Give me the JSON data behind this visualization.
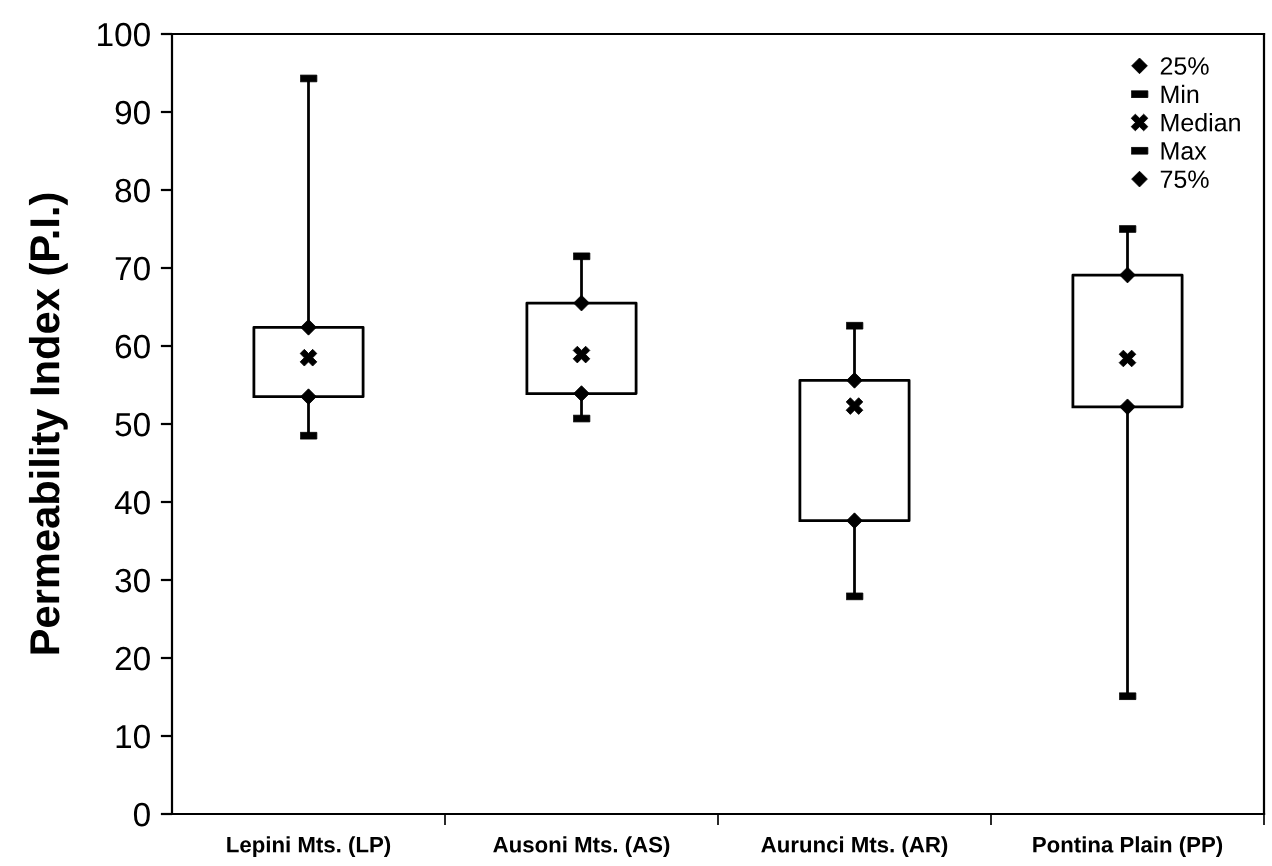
{
  "chart_data": {
    "type": "box",
    "ylabel": "Permeability Index (P.I.)",
    "categories": [
      "Lepini Mts. (LP)",
      "Ausoni Mts. (AS)",
      "Aurunci Mts. (AR)",
      "Pontina Plain (PP)"
    ],
    "boxes": [
      {
        "low": 48.5,
        "q1": 53.5,
        "q3": 62.4,
        "high": 94.3
      },
      {
        "low": 50.7,
        "q1": 53.9,
        "q3": 65.5,
        "high": 71.5
      },
      {
        "low": 27.9,
        "q1": 37.6,
        "q3": 55.6,
        "high": 62.6
      },
      {
        "low": 15.1,
        "q1": 52.2,
        "q3": 69.1,
        "high": 75.0
      }
    ],
    "series": [
      {
        "name": "25%",
        "type": "scatter",
        "marker": "diamond",
        "color": "#000000",
        "values": [
          53.5,
          53.9,
          37.6,
          52.2
        ]
      },
      {
        "name": "Min",
        "type": "scatter",
        "color": "#000000",
        "values": [
          48.5,
          50.7,
          27.9,
          15.1
        ]
      },
      {
        "name": "Median",
        "type": "scatter",
        "marker": "cross",
        "color": "#000000",
        "values": [
          58.5,
          58.9,
          52.3,
          58.4
        ]
      },
      {
        "name": "Max",
        "type": "scatter",
        "color": "#000000",
        "values": [
          94.3,
          71.5,
          62.6,
          75.0
        ]
      },
      {
        "name": "75%",
        "type": "scatter",
        "marker": "diamond",
        "color": "#000000",
        "values": [
          62.4,
          65.5,
          55.6,
          69.1
        ]
      }
    ],
    "ylim": [
      0,
      100
    ],
    "yticks": [
      0,
      10,
      20,
      30,
      40,
      50,
      60,
      70,
      80,
      90,
      100
    ],
    "grid": false,
    "legend": "top right"
  }
}
